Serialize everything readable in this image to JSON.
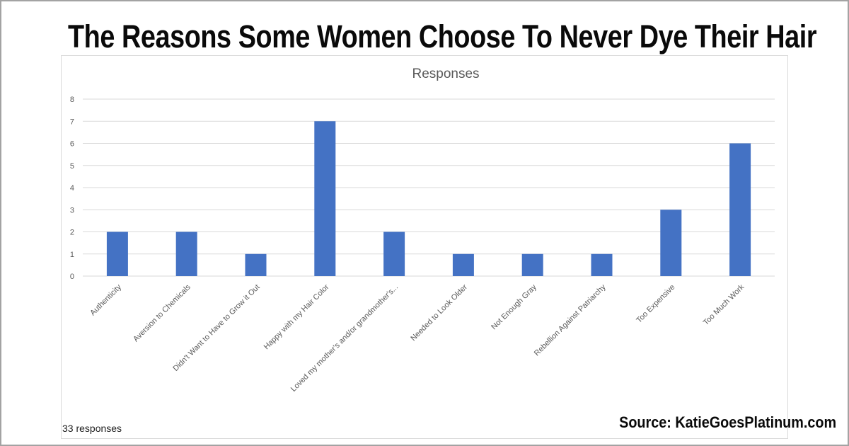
{
  "page": {
    "title": "The Reasons Some Women Choose To Never Dye Their Hair",
    "responses_count": "33 responses",
    "source": "Source: KatieGoesPlatinum.com"
  },
  "colors": {
    "bar": "#4472c4",
    "grid": "#d9d9d9",
    "axis_text": "#595959",
    "chart_title": "#595959"
  },
  "chart_data": {
    "type": "bar",
    "title": "Responses",
    "xlabel": "",
    "ylabel": "",
    "categories": [
      "Authenticity",
      "Aversion to Chemicals",
      "Didn't Want to Have to Grow it Out",
      "Happy with my Hair Color",
      "Loved my mother's and/or grandmother's...",
      "Needed to Look Older",
      "Not Enough Gray",
      "Rebellion Against Patriarchy",
      "Too Expensive",
      "Too Much Work"
    ],
    "values": [
      2,
      2,
      1,
      7,
      2,
      1,
      1,
      1,
      3,
      6
    ],
    "ylim": [
      0,
      8
    ],
    "yticks": [
      0,
      1,
      2,
      3,
      4,
      5,
      6,
      7,
      8
    ],
    "grid": true,
    "legend": "none"
  }
}
